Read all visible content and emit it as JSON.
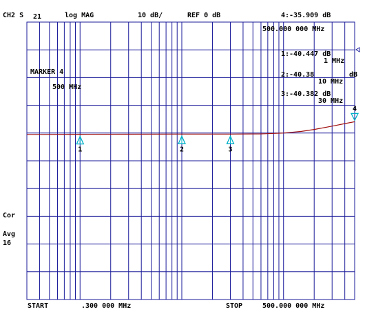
{
  "header": {
    "channel": "CH2 S",
    "param": "21",
    "format": "log MAG",
    "scale": "10 dB/",
    "ref": "REF 0 dB",
    "active_marker_readout": "4:-35.909 dB",
    "active_marker_freq": "500.000 000 MHz"
  },
  "marker_block": {
    "title": "MARKER 4",
    "freq": "500 MHz"
  },
  "marker_list": [
    {
      "label": "1:-40.447 dB",
      "freq": "1 MHz"
    },
    {
      "label": "2:-40.38",
      "unit": "dB",
      "freq": "10 MHz"
    },
    {
      "label": "3:-40.382 dB",
      "freq": "30 MHz"
    }
  ],
  "side_labels": {
    "cor": "Cor",
    "avg": "Avg",
    "avg_count": "16"
  },
  "footer": {
    "start_label": "START",
    "start_value": ".300 000 MHz",
    "stop_label": "STOP",
    "stop_value": "500.000 000 MHz"
  },
  "chart_data": {
    "type": "line",
    "x_scale": "log",
    "xlim_mhz": [
      0.3,
      500
    ],
    "ylim_db": [
      -100,
      0
    ],
    "grid": true,
    "colors": {
      "grid": "#1a1a9a",
      "trace": "#a01010",
      "marker": "#00b0c8",
      "ref_marker": "#2020a0"
    },
    "series": [
      {
        "x_mhz": [
          0.3,
          1,
          3,
          10,
          30,
          60,
          100,
          150,
          200,
          300,
          400,
          500
        ],
        "y_db": [
          -40.5,
          -40.447,
          -40.42,
          -40.38,
          -40.382,
          -40.3,
          -40.0,
          -39.4,
          -38.7,
          -37.5,
          -36.6,
          -35.909
        ]
      }
    ],
    "markers": [
      {
        "id": "1",
        "x_mhz": 1,
        "y_db": -40.447
      },
      {
        "id": "2",
        "x_mhz": 10,
        "y_db": -40.38
      },
      {
        "id": "3",
        "x_mhz": 30,
        "y_db": -40.382
      },
      {
        "id": "4",
        "x_mhz": 500,
        "y_db": -35.909
      }
    ]
  }
}
